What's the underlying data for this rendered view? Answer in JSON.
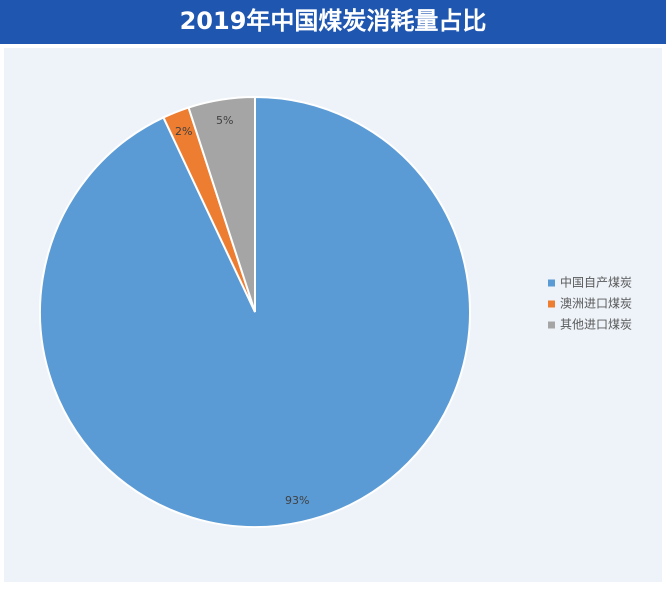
{
  "chart_data": {
    "type": "pie",
    "title": "2019年中国煤炭消耗量占比",
    "categories": [
      "中国自产煤炭",
      "澳洲进口煤炭",
      "其他进口煤炭"
    ],
    "values": [
      93,
      2,
      5
    ],
    "value_labels": [
      "93%",
      "2%",
      "5%"
    ],
    "colors": [
      "#5b9bd5",
      "#ed7d31",
      "#a5a5a5"
    ],
    "legend": "right"
  }
}
